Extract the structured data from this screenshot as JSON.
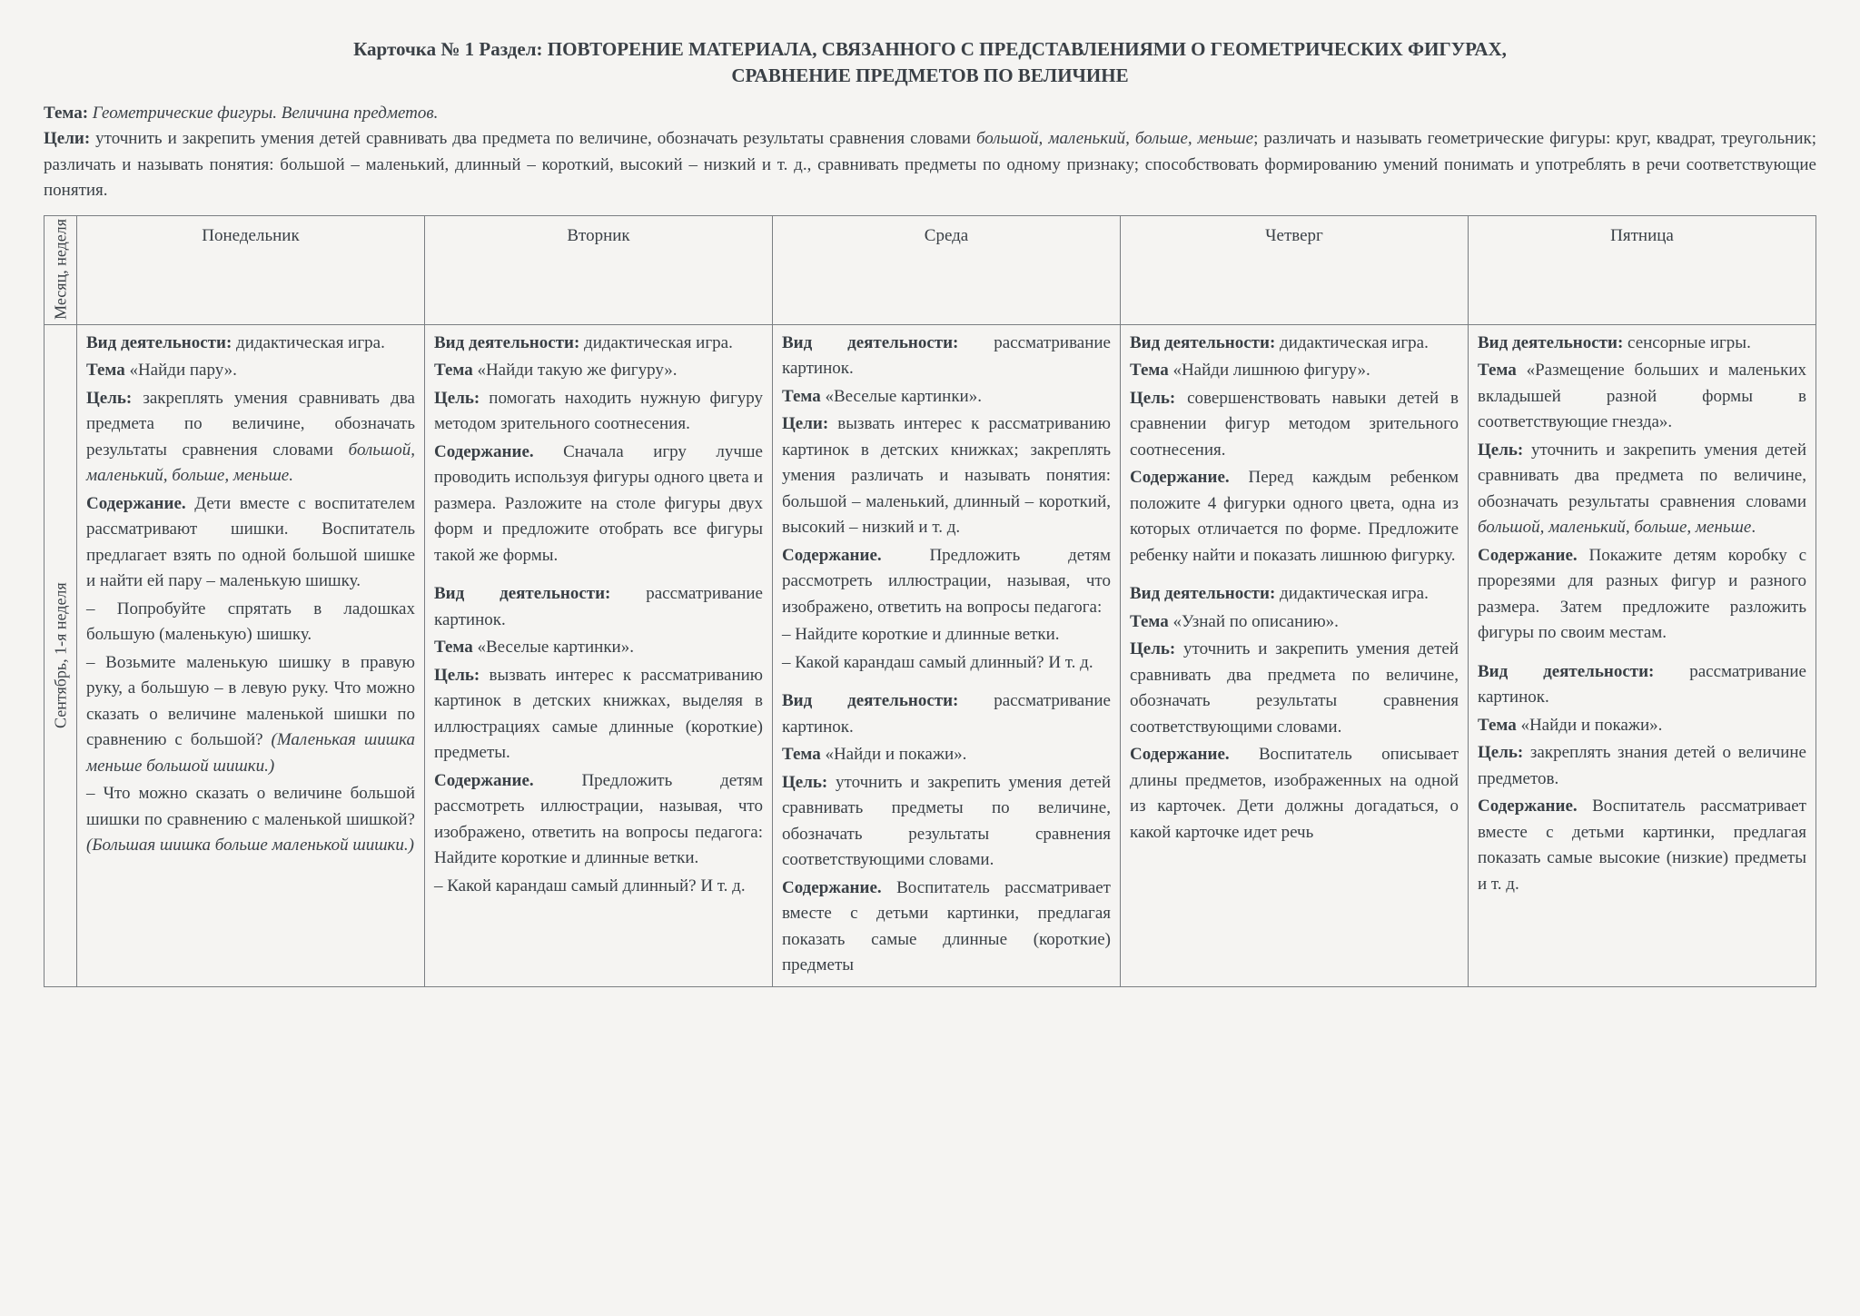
{
  "header": {
    "line1": "Карточка № 1  Раздел: ПОВТОРЕНИЕ МАТЕРИАЛА, СВЯЗАННОГО С ПРЕДСТАВЛЕНИЯМИ О ГЕОМЕТРИЧЕСКИХ ФИГУРАХ,",
    "line2": "СРАВНЕНИЕ ПРЕДМЕТОВ ПО ВЕЛИЧИНЕ"
  },
  "intro": {
    "theme_label": "Тема: ",
    "theme_value": "Геометрические фигуры. Величина предметов.",
    "goals_label": "Цели: ",
    "goals_html": "уточнить и закрепить умения детей сравнивать два предмета по величине, обозначать результаты сравнения словами <span class=\"i\">большой, маленький, больше, меньше</span>; различать и называть геометрические фигуры: круг, квадрат, треугольник; различать и называть понятия: большой – маленький, длинный – короткий, высокий – низкий и т. д., сравнивать предметы по одному признаку; способствовать формированию умений понимать и употреблять в речи соответствующие понятия."
  },
  "table": {
    "side_header": "Месяц, неделя",
    "side_row": "Сентябрь, 1-я неделя",
    "days": [
      "Понедельник",
      "Вторник",
      "Среда",
      "Четверг",
      "Пятница"
    ],
    "cells": {
      "mon": "<div class=\"block\"><p><span class=\"b\">Вид деятельности:</span> дидактическая игра.</p><p><span class=\"b\">Тема</span> «Найди пару».</p><p><span class=\"b\">Цель:</span> закреплять умения сравнивать два предмета по величине, обозначать результаты сравнения словами <span class=\"i\">большой, маленький, больше, меньше.</span></p><p><span class=\"b\">Содержание.</span> Дети вместе с воспитателем рассматривают шишки. Воспитатель предлагает взять по одной большой шишке и найти ей пару – маленькую шишку.</p><p>– Попробуйте спрятать в ладошках большую (маленькую) шишку.</p><p>– Возьмите маленькую шишку в правую руку, а большую – в левую руку. Что можно сказать о величине маленькой шишки по сравнению с большой? <span class=\"i\">(Маленькая шишка меньше большой шишки.)</span></p><p>– Что можно сказать о величине большой шишки по сравнению с маленькой шишкой? <span class=\"i\">(Большая шишка больше маленькой шишки.)</span></p></div>",
      "tue": "<div class=\"block\"><p><span class=\"b\">Вид деятельности:</span> дидактическая игра.</p><p><span class=\"b\">Тема</span> «Найди такую же фигуру».</p><p><span class=\"b\">Цель:</span> помогать находить нужную фигуру методом зрительного соотнесения.</p><p><span class=\"b\">Содержание.</span> Сначала игру лучше проводить используя фигуры одного цвета и размера. Разложите на столе фигуры двух форм и предложите отобрать все фигуры такой же формы.</p></div><div class=\"block\"><p><span class=\"b\">Вид деятельности:</span> рассматривание картинок.</p><p><span class=\"b\">Тема</span> «Веселые картинки».</p><p><span class=\"b\">Цель:</span> вызвать интерес к рассматриванию картинок в детских книжках, выделяя в иллюстрациях самые длинные (короткие) предметы.</p><p><span class=\"b\">Содержание.</span> Предложить детям рассмотреть иллюстрации, называя, что изображено, ответить на вопросы педагога: Найдите короткие и длинные ветки.</p><p>– Какой карандаш самый длинный? И т. д.</p></div>",
      "wed": "<div class=\"block\"><p><span class=\"b\">Вид деятельности:</span> рассматривание картинок.</p><p><span class=\"b\">Тема</span> «Веселые картинки».</p><p><span class=\"b\">Цели:</span> вызвать интерес к рассматриванию картинок в детских книжках; закреплять умения различать и называть понятия: большой – маленький, длинный – короткий, высокий – низкий и т. д.</p><p><span class=\"b\">Содержание.</span> Предложить детям рассмотреть иллюстрации, называя, что изображено, ответить на вопросы педагога:</p><p>– Найдите короткие и длинные ветки.</p><p>– Какой карандаш самый длинный? И т. д.</p></div><div class=\"block\"><p><span class=\"b\">Вид деятельности:</span> рассматривание картинок.</p><p><span class=\"b\">Тема</span> «Найди и покажи».</p><p><span class=\"b\">Цель:</span> уточнить и закрепить умения детей сравнивать предметы по величине, обозначать результаты сравнения соответствующими словами.</p><p><span class=\"b\">Содержание.</span> Воспитатель рассматривает вместе с детьми картинки, предлагая показать самые длинные (короткие) предметы</p></div>",
      "thu": "<div class=\"block\"><p><span class=\"b\">Вид деятельности:</span> дидактическая игра.</p><p><span class=\"b\">Тема</span> «Найди лишнюю фигуру».</p><p><span class=\"b\">Цель:</span> совершенствовать навыки детей в сравнении фигур методом зрительного соотнесения.</p><p><span class=\"b\">Содержание.</span> Перед каждым ребенком положите 4 фигурки одного цвета, одна из которых отличается по форме. Предложите ребенку найти и показать лишнюю фигурку.</p></div><div class=\"block\"><p><span class=\"b\">Вид деятельности:</span> дидактическая игра.</p><p><span class=\"b\">Тема</span> «Узнай по описанию».</p><p><span class=\"b\">Цель:</span> уточнить и закрепить умения детей сравнивать два предмета по величине, обозначать результаты сравнения соответствующими словами.</p><p><span class=\"b\">Содержание.</span> Воспитатель описывает длины предметов, изображенных на одной из карточек. Дети должны догадаться, о какой карточке идет речь</p></div>",
      "fri": "<div class=\"block\"><p><span class=\"b\">Вид деятельности:</span> сенсорные игры.</p><p><span class=\"b\">Тема</span> «Размещение больших и маленьких вкладышей разной формы в соответствующие гнезда».</p><p><span class=\"b\">Цель:</span> уточнить и закрепить умения детей сравнивать два предмета по величине, обозначать результаты сравнения словами <span class=\"i\">большой, маленький, больше, меньше</span>.</p><p><span class=\"b\">Содержание.</span> Покажите детям коробку с прорезями для разных фигур и разного размера. Затем предложите разложить фигуры по своим местам.</p></div><div class=\"block\"><p><span class=\"b\">Вид деятельности:</span> рассматривание картинок.</p><p><span class=\"b\">Тема</span> «Найди и покажи».</p><p><span class=\"b\">Цель:</span> закреплять знания детей о величине предметов.</p><p><span class=\"b\">Содержание.</span> Воспитатель рассматривает вместе с детьми картинки, предлагая показать самые высокие (низкие) предметы и т. д.</p></div>"
    }
  }
}
